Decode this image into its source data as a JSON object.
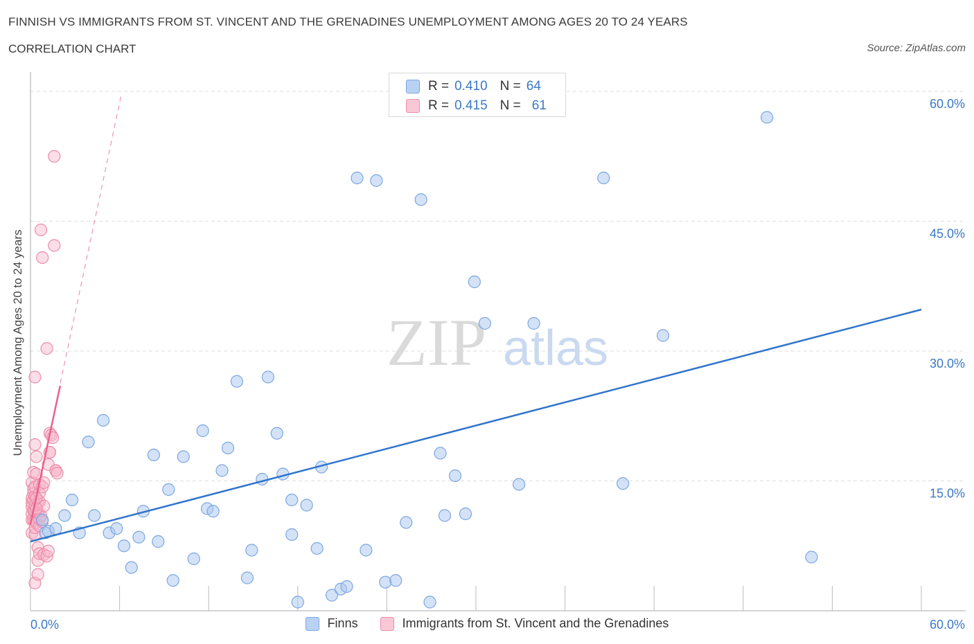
{
  "header": {
    "title": "FINNISH VS IMMIGRANTS FROM ST. VINCENT AND THE GRENADINES UNEMPLOYMENT AMONG AGES 20 TO 24 YEARS",
    "subtitle": "CORRELATION CHART",
    "source": "Source: ZipAtlas.com"
  },
  "watermark": {
    "zip": "ZIP",
    "atlas": "atlas"
  },
  "legend": {
    "rows": [
      {
        "r_label": "R =",
        "r_value": "0.410",
        "n_label": "N =",
        "n_value": "64"
      },
      {
        "r_label": "R =",
        "r_value": "0.415",
        "n_label": "N =",
        "n_value": "61"
      }
    ]
  },
  "colors": {
    "finns_fill": "#a9c6ef",
    "finns_stroke": "#7aa6e0",
    "finns_line": "#2f74cc",
    "svg_fill": "#f7b6c9",
    "svg_stroke": "#ee8aa9",
    "svg_line": "#e8628c",
    "axis_label": "#3a78c6",
    "grid": "#dddddd"
  },
  "chart_data": {
    "type": "scatter",
    "title": "FINNISH VS IMMIGRANTS FROM ST. VINCENT AND THE GRENADINES UNEMPLOYMENT AMONG AGES 20 TO 24 YEARS",
    "ylabel": "Unemployment Among Ages 20 to 24 years",
    "xlabel": "",
    "xlim": [
      0,
      60
    ],
    "ylim": [
      0,
      60
    ],
    "x_tick_labels": [
      "0.0%",
      "60.0%"
    ],
    "y_tick_labels": [
      "15.0%",
      "30.0%",
      "45.0%",
      "60.0%"
    ],
    "y_ticks": [
      15,
      30,
      45,
      60
    ],
    "grid": true,
    "legend_position": "bottom",
    "series": [
      {
        "name": "Finns",
        "R": 0.41,
        "N": 64,
        "trend": {
          "x": [
            0,
            60
          ],
          "y": [
            8.0,
            34.8
          ]
        },
        "points": [
          [
            0.8,
            10.5
          ],
          [
            1.0,
            9.0
          ],
          [
            1.2,
            9.2
          ],
          [
            1.7,
            9.5
          ],
          [
            2.3,
            11.0
          ],
          [
            2.8,
            12.8
          ],
          [
            3.3,
            9.0
          ],
          [
            3.9,
            19.5
          ],
          [
            4.3,
            11.0
          ],
          [
            4.9,
            22.0
          ],
          [
            5.3,
            9.0
          ],
          [
            5.8,
            9.5
          ],
          [
            6.3,
            7.5
          ],
          [
            6.8,
            5.0
          ],
          [
            7.3,
            8.5
          ],
          [
            7.6,
            11.5
          ],
          [
            8.3,
            18.0
          ],
          [
            8.6,
            8.0
          ],
          [
            9.3,
            14.0
          ],
          [
            9.6,
            3.5
          ],
          [
            10.3,
            17.8
          ],
          [
            11.0,
            6.0
          ],
          [
            11.6,
            20.8
          ],
          [
            11.9,
            11.8
          ],
          [
            12.3,
            11.5
          ],
          [
            12.9,
            16.2
          ],
          [
            13.3,
            18.8
          ],
          [
            13.9,
            26.5
          ],
          [
            14.6,
            3.8
          ],
          [
            14.9,
            7.0
          ],
          [
            15.6,
            15.2
          ],
          [
            16.0,
            27.0
          ],
          [
            16.6,
            20.5
          ],
          [
            17.0,
            15.8
          ],
          [
            17.6,
            12.8
          ],
          [
            17.6,
            8.8
          ],
          [
            18.0,
            1.0
          ],
          [
            18.6,
            12.2
          ],
          [
            19.3,
            7.2
          ],
          [
            19.6,
            16.6
          ],
          [
            20.3,
            1.8
          ],
          [
            20.9,
            2.5
          ],
          [
            21.3,
            2.8
          ],
          [
            22.0,
            50.0
          ],
          [
            22.6,
            7.0
          ],
          [
            23.3,
            49.7
          ],
          [
            23.9,
            3.3
          ],
          [
            24.6,
            3.5
          ],
          [
            25.3,
            10.2
          ],
          [
            26.3,
            47.5
          ],
          [
            26.9,
            1.0
          ],
          [
            27.6,
            18.2
          ],
          [
            27.9,
            11.0
          ],
          [
            28.6,
            15.6
          ],
          [
            29.3,
            11.2
          ],
          [
            29.9,
            38.0
          ],
          [
            30.6,
            33.2
          ],
          [
            32.9,
            14.6
          ],
          [
            33.9,
            33.2
          ],
          [
            38.6,
            50.0
          ],
          [
            39.9,
            14.7
          ],
          [
            42.6,
            31.8
          ],
          [
            49.6,
            57.0
          ],
          [
            52.6,
            6.2
          ]
        ]
      },
      {
        "name": "Immigrants from St. Vincent and the Grenadines",
        "R": 0.415,
        "N": 61,
        "trend": {
          "x": [
            0,
            2.0
          ],
          "y": [
            10.0,
            26.0
          ]
        },
        "trend_ext": {
          "x": [
            0,
            6.1
          ],
          "y": [
            10.0,
            59.5
          ]
        },
        "points": [
          [
            0.1,
            9.0
          ],
          [
            0.1,
            10.5
          ],
          [
            0.1,
            11.2
          ],
          [
            0.1,
            12.0
          ],
          [
            0.1,
            12.5
          ],
          [
            0.1,
            13.0
          ],
          [
            0.1,
            14.8
          ],
          [
            0.2,
            16.0
          ],
          [
            0.2,
            10.5
          ],
          [
            0.2,
            11.6
          ],
          [
            0.2,
            12.8
          ],
          [
            0.2,
            13.6
          ],
          [
            0.2,
            14.1
          ],
          [
            0.3,
            8.8
          ],
          [
            0.3,
            9.6
          ],
          [
            0.3,
            10.4
          ],
          [
            0.3,
            11.5
          ],
          [
            0.3,
            12.2
          ],
          [
            0.3,
            13.2
          ],
          [
            0.3,
            14.3
          ],
          [
            0.3,
            27.0
          ],
          [
            0.3,
            3.2
          ],
          [
            0.3,
            19.2
          ],
          [
            0.4,
            17.8
          ],
          [
            0.4,
            15.8
          ],
          [
            0.4,
            10.2
          ],
          [
            0.5,
            11.3
          ],
          [
            0.5,
            12.4
          ],
          [
            0.5,
            7.3
          ],
          [
            0.5,
            5.8
          ],
          [
            0.5,
            4.2
          ],
          [
            0.6,
            9.8
          ],
          [
            0.6,
            10.6
          ],
          [
            0.6,
            12.6
          ],
          [
            0.6,
            13.6
          ],
          [
            0.6,
            14.6
          ],
          [
            0.6,
            6.6
          ],
          [
            0.7,
            44.0
          ],
          [
            0.7,
            11.0
          ],
          [
            0.8,
            40.8
          ],
          [
            0.8,
            10.3
          ],
          [
            0.8,
            14.3
          ],
          [
            0.9,
            14.8
          ],
          [
            0.9,
            12.1
          ],
          [
            0.9,
            6.5
          ],
          [
            1.1,
            30.3
          ],
          [
            1.1,
            6.3
          ],
          [
            1.2,
            6.9
          ],
          [
            1.2,
            16.9
          ],
          [
            1.3,
            20.5
          ],
          [
            1.3,
            18.3
          ],
          [
            1.3,
            18.3
          ],
          [
            1.4,
            20.3
          ],
          [
            1.5,
            20.0
          ],
          [
            1.6,
            52.5
          ],
          [
            1.6,
            42.2
          ],
          [
            1.7,
            16.2
          ],
          [
            1.7,
            16.2
          ],
          [
            1.8,
            15.9
          ],
          [
            0.4,
            11.8
          ],
          [
            0.4,
            13.0
          ]
        ]
      }
    ]
  }
}
